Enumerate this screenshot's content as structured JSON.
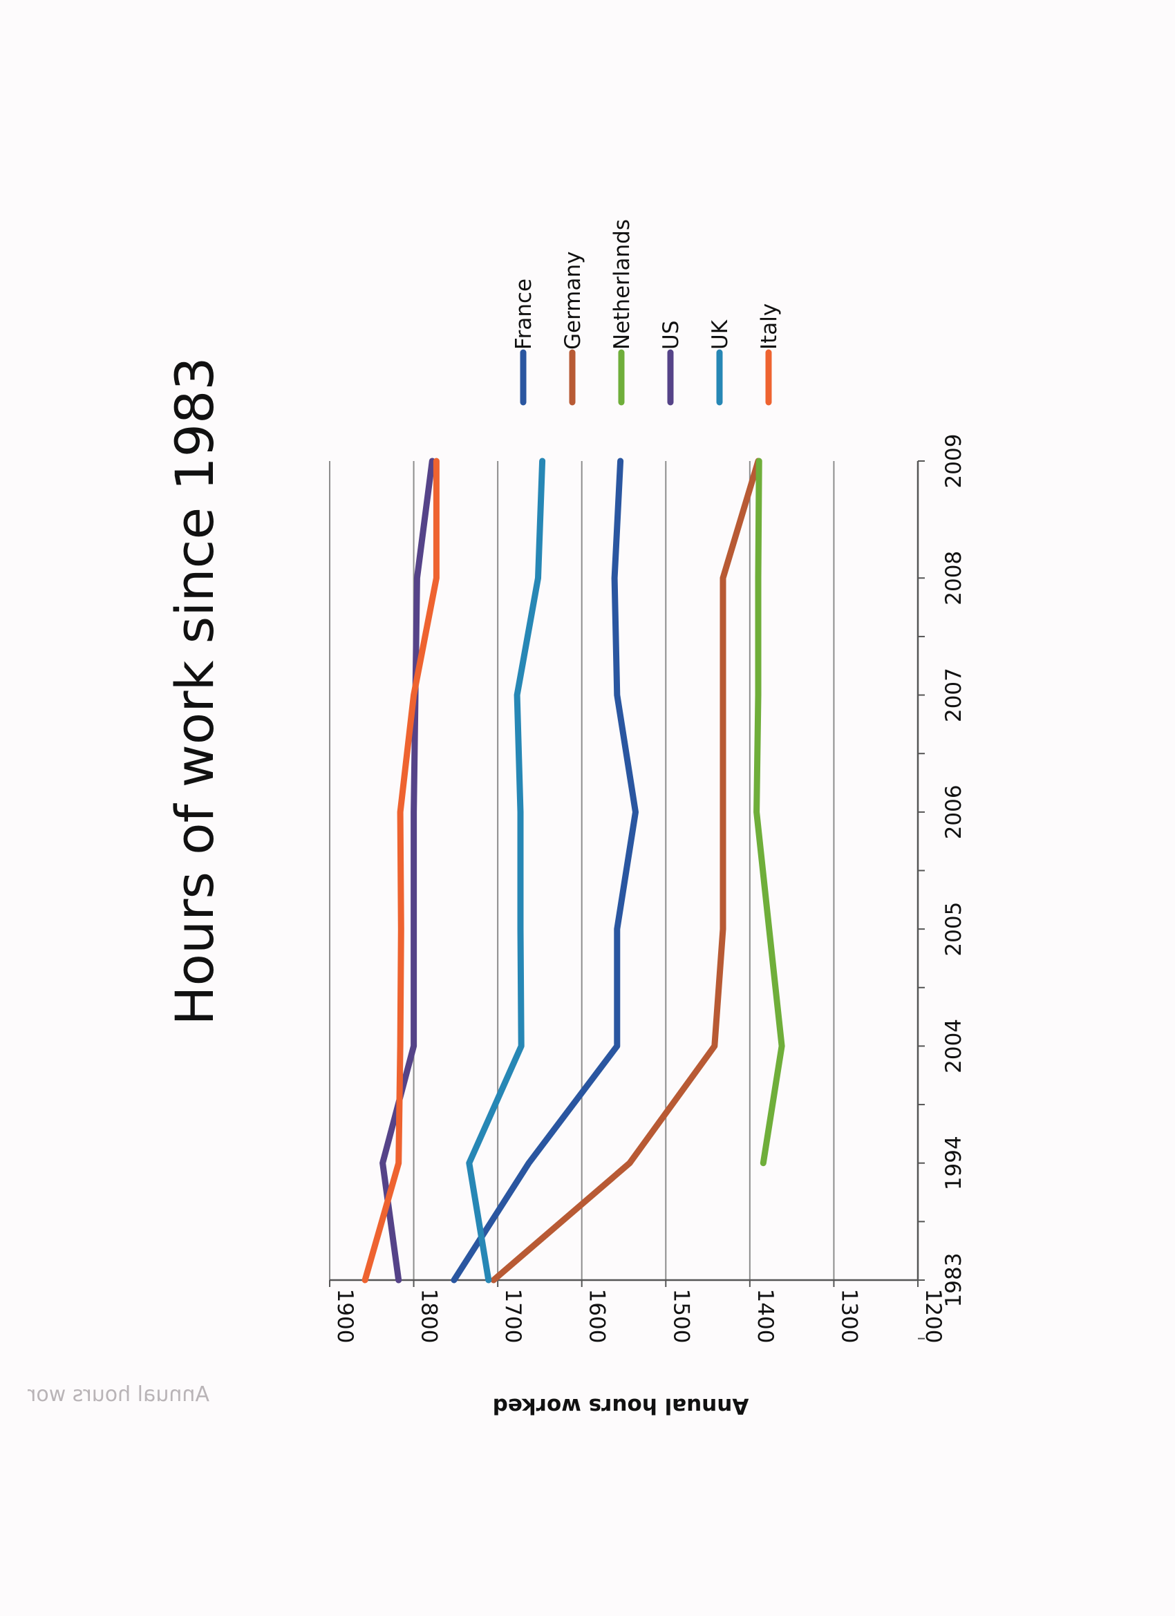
{
  "page": {
    "ghost_label": "Annual hours wor"
  },
  "chart_data": {
    "type": "line",
    "title": "Hours of work since 1983",
    "xlabel": "",
    "ylabel": "Annual hours worked",
    "categories": [
      "1983",
      "1994",
      "2004",
      "2005",
      "2006",
      "2007",
      "2008",
      "2009"
    ],
    "ylim": [
      1200,
      1900
    ],
    "y_ticks": [
      1900,
      1800,
      1700,
      1600,
      1500,
      1400,
      1300,
      1200
    ],
    "grid": true,
    "legend_position": "top-right",
    "orientation": "rotated 90 degrees clockwise on the page",
    "series": [
      {
        "name": "France",
        "color": "#2a56a0",
        "values": [
          1752,
          1663,
          1558,
          1558,
          1536,
          1558,
          1561,
          1554
        ]
      },
      {
        "name": "Germany",
        "color": "#b85a34",
        "values": [
          1705,
          1543,
          1442,
          1432,
          1432,
          1432,
          1432,
          1390
        ]
      },
      {
        "name": "Netherlands",
        "color": "#6fae3a",
        "values": [
          null,
          1384,
          1362,
          1377,
          1392,
          1390,
          1390,
          1389
        ]
      },
      {
        "name": "US",
        "color": "#554388",
        "values": [
          1818,
          1837,
          1800,
          1800,
          1800,
          1798,
          1796,
          1778
        ]
      },
      {
        "name": "UK",
        "color": "#2787b5",
        "values": [
          1711,
          1734,
          1672,
          1673,
          1673,
          1677,
          1652,
          1647
        ]
      },
      {
        "name": "Italy",
        "color": "#ee6330",
        "values": [
          1858,
          1818,
          1816,
          1815,
          1816,
          1800,
          1773,
          1773
        ]
      }
    ]
  }
}
